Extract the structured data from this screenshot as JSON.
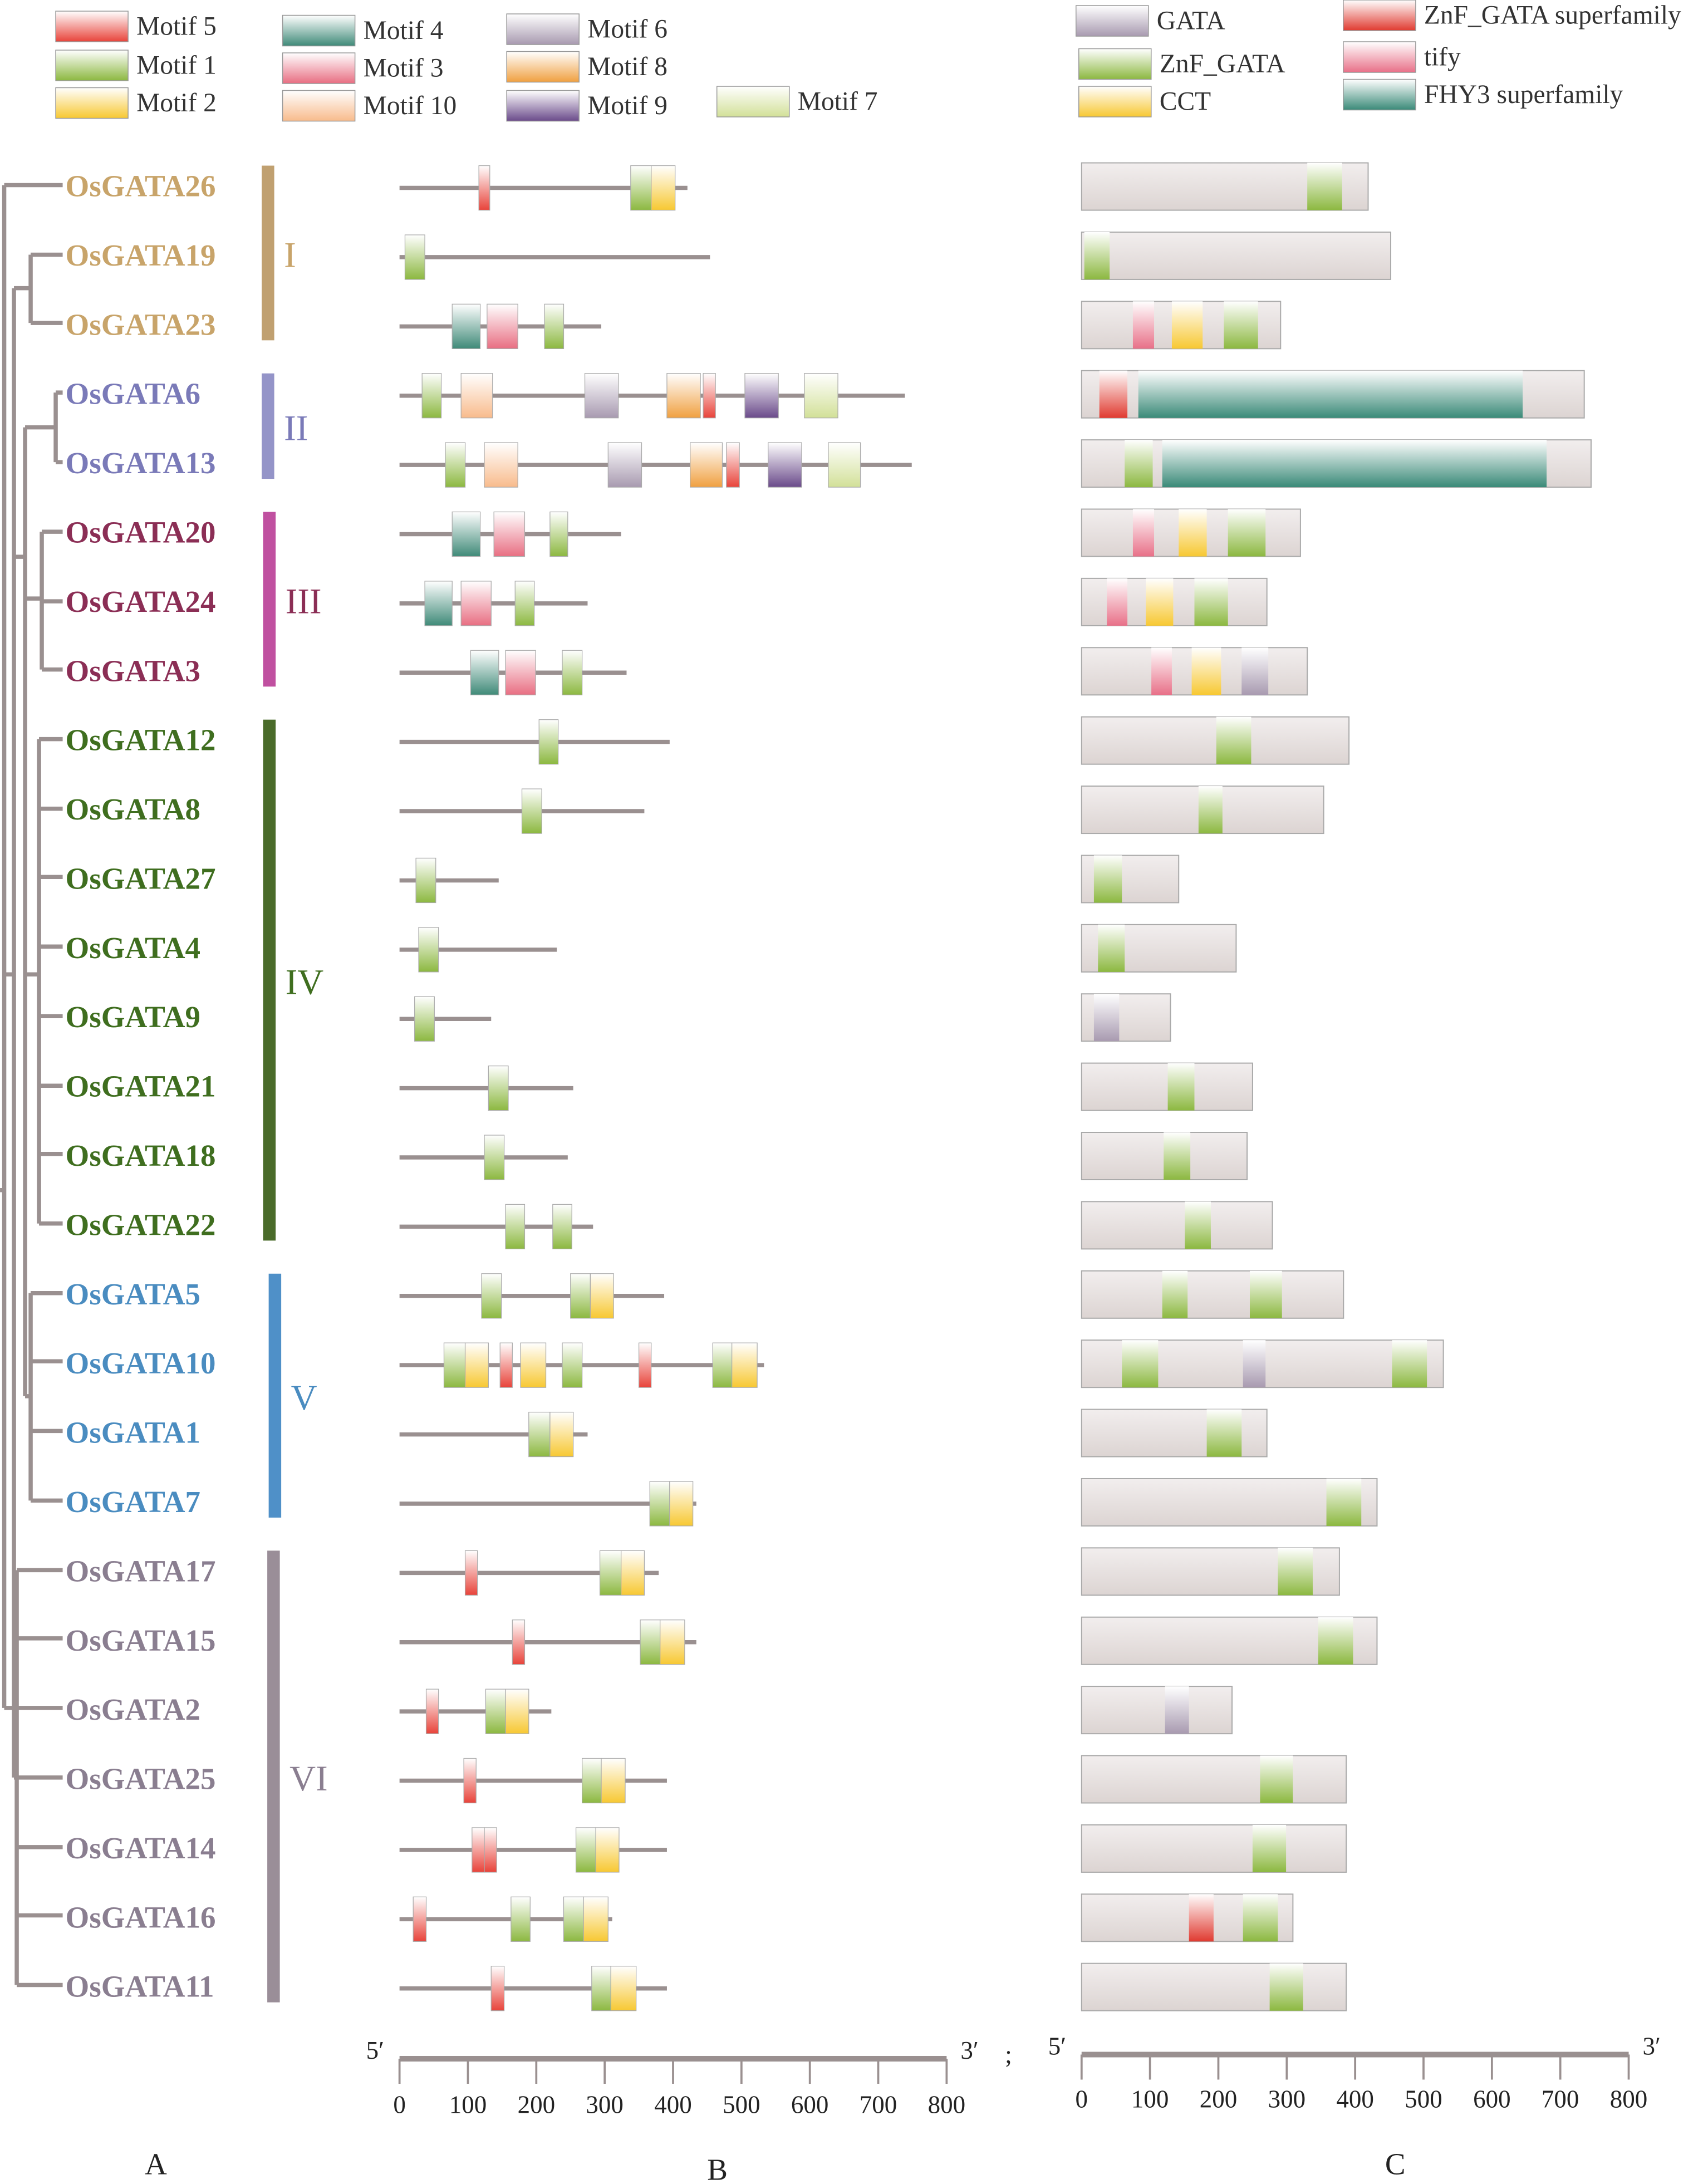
{
  "legend_motifs": [
    {
      "label": "Motif 5",
      "color": "#e8433a"
    },
    {
      "label": "Motif 1",
      "color": "#8cb840"
    },
    {
      "label": "Motif 2",
      "color": "#f7c832"
    },
    {
      "label": "Motif 4",
      "color": "#3f8a78"
    },
    {
      "label": "Motif 3",
      "color": "#e86e82"
    },
    {
      "label": "Motif 10",
      "color": "#f8bb8c"
    },
    {
      "label": "Motif 6",
      "color": "#a89ab0"
    },
    {
      "label": "Motif 8",
      "color": "#f0a040"
    },
    {
      "label": "Motif 9",
      "color": "#6a4a8a"
    },
    {
      "label": "Motif 7",
      "color": "#d2e098"
    }
  ],
  "legend_domains": [
    {
      "key": "GATA",
      "label": "GATA",
      "color": "#a89ab0"
    },
    {
      "key": "ZnF_GATA",
      "label": "ZnF_GATA",
      "color": "#8cb840"
    },
    {
      "key": "CCT",
      "label": "CCT",
      "color": "#f7c832"
    },
    {
      "key": "ZnF_GATA_sf",
      "label": "ZnF_GATA superfamily",
      "color": "#e03a30"
    },
    {
      "key": "tify",
      "label": "tify",
      "color": "#e87088"
    },
    {
      "key": "FHY3",
      "label": "FHY3 superfamily",
      "color": "#3a8a78"
    }
  ],
  "groups": [
    {
      "label": "I",
      "color": "#c0a070",
      "text_color": "#c8a46a"
    },
    {
      "label": "II",
      "color": "#9494c8",
      "text_color": "#7a7ab8"
    },
    {
      "label": "III",
      "color": "#c050a0",
      "text_color": "#8b2e55"
    },
    {
      "label": "IV",
      "color": "#4a6b2a",
      "text_color": "#3f6e1f"
    },
    {
      "label": "V",
      "color": "#4f90c8",
      "text_color": "#4a8cc0"
    },
    {
      "label": "VI",
      "color": "#9a8e98",
      "text_color": "#8a7e90"
    }
  ],
  "genes": [
    {
      "name": "OsGATA26",
      "group": 0,
      "length": 421,
      "motifs": [
        [
          5,
          116,
          132
        ],
        [
          1,
          338,
          368
        ],
        [
          2,
          368,
          403
        ]
      ],
      "protein": 419,
      "domains": [
        [
          "ZnF_GATA",
          330,
          381
        ]
      ]
    },
    {
      "name": "OsGATA19",
      "group": 0,
      "length": 454,
      "motifs": [
        [
          1,
          8,
          37
        ]
      ],
      "protein": 452,
      "domains": [
        [
          "ZnF_GATA",
          4,
          41
        ]
      ]
    },
    {
      "name": "OsGATA23",
      "group": 0,
      "length": 295,
      "motifs": [
        [
          4,
          77,
          118
        ],
        [
          3,
          128,
          173
        ],
        [
          1,
          212,
          240
        ]
      ],
      "protein": 291,
      "domains": [
        [
          "tify",
          75,
          106
        ],
        [
          "CCT",
          132,
          177
        ],
        [
          "ZnF_GATA",
          208,
          258
        ]
      ]
    },
    {
      "name": "OsGATA6",
      "group": 1,
      "length": 739,
      "motifs": [
        [
          1,
          33,
          61
        ],
        [
          10,
          90,
          136
        ],
        [
          6,
          271,
          320
        ],
        [
          8,
          391,
          440
        ],
        [
          5,
          444,
          462
        ],
        [
          9,
          505,
          554
        ],
        [
          7,
          592,
          641
        ]
      ],
      "protein": 735,
      "domains": [
        [
          "ZnF_GATA_sf",
          26,
          67
        ],
        [
          "FHY3",
          83,
          645
        ]
      ]
    },
    {
      "name": "OsGATA13",
      "group": 1,
      "length": 749,
      "motifs": [
        [
          1,
          67,
          96
        ],
        [
          10,
          124,
          173
        ],
        [
          6,
          305,
          354
        ],
        [
          8,
          425,
          472
        ],
        [
          5,
          478,
          497
        ],
        [
          9,
          539,
          588
        ],
        [
          7,
          627,
          674
        ]
      ],
      "protein": 745,
      "domains": [
        [
          "ZnF_GATA",
          63,
          104
        ],
        [
          "FHY3",
          118,
          680
        ]
      ]
    },
    {
      "name": "OsGATA20",
      "group": 2,
      "length": 324,
      "motifs": [
        [
          4,
          77,
          118
        ],
        [
          3,
          138,
          183
        ],
        [
          1,
          220,
          246
        ]
      ],
      "protein": 320,
      "domains": [
        [
          "tify",
          75,
          106
        ],
        [
          "CCT",
          142,
          183
        ],
        [
          "ZnF_GATA",
          214,
          269
        ]
      ]
    },
    {
      "name": "OsGATA24",
      "group": 2,
      "length": 275,
      "motifs": [
        [
          4,
          37,
          77
        ],
        [
          3,
          90,
          134
        ],
        [
          1,
          169,
          197
        ]
      ],
      "protein": 271,
      "domains": [
        [
          "tify",
          37,
          67
        ],
        [
          "CCT",
          94,
          134
        ],
        [
          "ZnF_GATA",
          165,
          214
        ]
      ]
    },
    {
      "name": "OsGATA3",
      "group": 2,
      "length": 332,
      "motifs": [
        [
          4,
          104,
          145
        ],
        [
          3,
          155,
          199
        ],
        [
          1,
          238,
          267
        ]
      ],
      "protein": 330,
      "domains": [
        [
          "tify",
          102,
          132
        ],
        [
          "CCT",
          161,
          204
        ],
        [
          "GATA",
          234,
          273
        ]
      ]
    },
    {
      "name": "OsGATA12",
      "group": 3,
      "length": 395,
      "motifs": [
        [
          1,
          204,
          232
        ]
      ],
      "protein": 391,
      "domains": [
        [
          "ZnF_GATA",
          197,
          248
        ]
      ]
    },
    {
      "name": "OsGATA8",
      "group": 3,
      "length": 358,
      "motifs": [
        [
          1,
          179,
          208
        ]
      ],
      "protein": 354,
      "domains": [
        [
          "ZnF_GATA",
          171,
          206
        ]
      ]
    },
    {
      "name": "OsGATA27",
      "group": 3,
      "length": 145,
      "motifs": [
        [
          1,
          24,
          53
        ]
      ],
      "protein": 142,
      "domains": [
        [
          "ZnF_GATA",
          18,
          59
        ]
      ]
    },
    {
      "name": "OsGATA4",
      "group": 3,
      "length": 230,
      "motifs": [
        [
          1,
          28,
          57
        ]
      ],
      "protein": 226,
      "domains": [
        [
          "ZnF_GATA",
          24,
          63
        ]
      ]
    },
    {
      "name": "OsGATA9",
      "group": 3,
      "length": 134,
      "motifs": [
        [
          1,
          22,
          51
        ]
      ],
      "protein": 130,
      "domains": [
        [
          "GATA",
          18,
          55
        ]
      ]
    },
    {
      "name": "OsGATA21",
      "group": 3,
      "length": 254,
      "motifs": [
        [
          1,
          130,
          159
        ]
      ],
      "protein": 250,
      "domains": [
        [
          "ZnF_GATA",
          126,
          165
        ]
      ]
    },
    {
      "name": "OsGATA18",
      "group": 3,
      "length": 246,
      "motifs": [
        [
          1,
          124,
          153
        ]
      ],
      "protein": 242,
      "domains": [
        [
          "ZnF_GATA",
          120,
          159
        ]
      ]
    },
    {
      "name": "OsGATA22",
      "group": 3,
      "length": 283,
      "motifs": [
        [
          1,
          155,
          183
        ],
        [
          1,
          224,
          252
        ]
      ],
      "protein": 279,
      "domains": [
        [
          "ZnF_GATA",
          151,
          189
        ]
      ]
    },
    {
      "name": "OsGATA5",
      "group": 4,
      "length": 387,
      "motifs": [
        [
          1,
          120,
          149
        ],
        [
          1,
          250,
          279
        ],
        [
          2,
          279,
          313
        ]
      ],
      "protein": 383,
      "domains": [
        [
          "ZnF_GATA",
          118,
          155
        ],
        [
          "ZnF_GATA",
          246,
          293
        ]
      ]
    },
    {
      "name": "OsGATA10",
      "group": 4,
      "length": 533,
      "motifs": [
        [
          1,
          65,
          96
        ],
        [
          2,
          96,
          130
        ],
        [
          5,
          147,
          165
        ],
        [
          2,
          177,
          214
        ],
        [
          1,
          238,
          267
        ],
        [
          5,
          350,
          368
        ],
        [
          1,
          458,
          486
        ],
        [
          2,
          486,
          523
        ]
      ],
      "protein": 529,
      "domains": [
        [
          "ZnF_GATA",
          59,
          112
        ],
        [
          "GATA",
          236,
          269
        ],
        [
          "ZnF_GATA",
          454,
          505
        ]
      ]
    },
    {
      "name": "OsGATA1",
      "group": 4,
      "length": 275,
      "motifs": [
        [
          1,
          189,
          220
        ],
        [
          2,
          220,
          254
        ]
      ],
      "protein": 271,
      "domains": [
        [
          "ZnF_GATA",
          183,
          234
        ]
      ]
    },
    {
      "name": "OsGATA7",
      "group": 4,
      "length": 434,
      "motifs": [
        [
          1,
          366,
          395
        ],
        [
          2,
          395,
          429
        ]
      ],
      "protein": 432,
      "domains": [
        [
          "ZnF_GATA",
          358,
          409
        ]
      ]
    },
    {
      "name": "OsGATA17",
      "group": 5,
      "length": 379,
      "motifs": [
        [
          5,
          96,
          114
        ],
        [
          1,
          293,
          324
        ],
        [
          2,
          324,
          358
        ]
      ],
      "protein": 377,
      "domains": [
        [
          "ZnF_GATA",
          287,
          338
        ]
      ]
    },
    {
      "name": "OsGATA15",
      "group": 5,
      "length": 434,
      "motifs": [
        [
          5,
          165,
          183
        ],
        [
          1,
          352,
          381
        ],
        [
          2,
          381,
          417
        ]
      ],
      "protein": 432,
      "domains": [
        [
          "ZnF_GATA",
          346,
          397
        ]
      ]
    },
    {
      "name": "OsGATA2",
      "group": 5,
      "length": 222,
      "motifs": [
        [
          5,
          39,
          57
        ],
        [
          1,
          126,
          155
        ],
        [
          2,
          155,
          189
        ]
      ],
      "protein": 220,
      "domains": [
        [
          "GATA",
          122,
          157
        ]
      ]
    },
    {
      "name": "OsGATA25",
      "group": 5,
      "length": 391,
      "motifs": [
        [
          5,
          94,
          112
        ],
        [
          1,
          267,
          295
        ],
        [
          2,
          295,
          330
        ]
      ],
      "protein": 387,
      "domains": [
        [
          "ZnF_GATA",
          261,
          309
        ]
      ]
    },
    {
      "name": "OsGATA14",
      "group": 5,
      "length": 391,
      "motifs": [
        [
          5,
          106,
          124
        ],
        [
          5,
          124,
          142
        ],
        [
          1,
          258,
          287
        ],
        [
          2,
          287,
          321
        ]
      ],
      "protein": 387,
      "domains": [
        [
          "ZnF_GATA",
          250,
          299
        ]
      ]
    },
    {
      "name": "OsGATA16",
      "group": 5,
      "length": 311,
      "motifs": [
        [
          5,
          20,
          39
        ],
        [
          1,
          163,
          191
        ],
        [
          1,
          240,
          269
        ],
        [
          2,
          269,
          305
        ]
      ],
      "protein": 309,
      "domains": [
        [
          "ZnF_GATA_sf",
          157,
          193
        ],
        [
          "ZnF_GATA",
          236,
          287
        ]
      ]
    },
    {
      "name": "OsGATA11",
      "group": 5,
      "length": 391,
      "motifs": [
        [
          5,
          134,
          153
        ],
        [
          1,
          281,
          309
        ],
        [
          2,
          309,
          346
        ]
      ],
      "protein": 387,
      "domains": [
        [
          "ZnF_GATA",
          275,
          324
        ]
      ]
    }
  ],
  "axis": {
    "ticks": [
      "0",
      "100",
      "200",
      "300",
      "400",
      "500",
      "600",
      "700",
      "800"
    ],
    "max": 800,
    "five_prime": "5′",
    "three_prime": "3′",
    "separator": ";"
  },
  "panels": {
    "a": "A",
    "b": "B",
    "c": "C"
  },
  "colors": {
    "backbone": "#9a9090",
    "protein_box": "#dcd4d2",
    "tree": "#9a9090"
  }
}
